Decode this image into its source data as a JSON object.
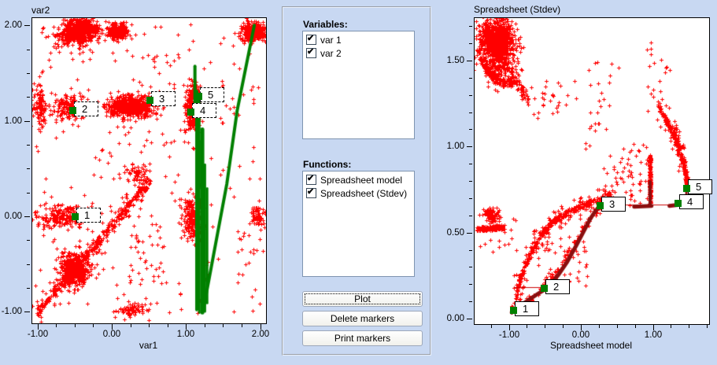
{
  "app": {
    "background": "#c8d8f2"
  },
  "panel": {
    "variables_label": "Variables:",
    "variables": [
      {
        "label": "var 1",
        "checked": true
      },
      {
        "label": "var 2",
        "checked": true
      }
    ],
    "functions_label": "Functions:",
    "functions": [
      {
        "label": "Spreadsheet model",
        "checked": true
      },
      {
        "label": "Spreadsheet (Stdev)",
        "checked": true
      }
    ],
    "buttons": [
      {
        "label": "Plot",
        "focused": true
      },
      {
        "label": "Delete markers",
        "focused": false
      },
      {
        "label": "Print markers",
        "focused": false
      }
    ]
  },
  "chart_data": [
    {
      "type": "scatter",
      "title": "var2",
      "xlabel": "var1",
      "xlim": [
        -1.07,
        2.07
      ],
      "ylim": [
        -1.11,
        2.09
      ],
      "point_color": "#ff0000",
      "line_color": "#008000",
      "marker_color": "#008000",
      "marker_box": "dashed",
      "x_ticks": {
        "majors": [
          {
            "v": -1,
            "label": "-1.00"
          },
          {
            "v": 0,
            "label": "0.00"
          },
          {
            "v": 1,
            "label": "1.00"
          },
          {
            "v": 2,
            "label": "2.00"
          }
        ],
        "minor": {
          "from": -1,
          "to": 2,
          "step": 0.25
        }
      },
      "y_ticks": {
        "majors": [
          {
            "v": 2,
            "label": "2.00"
          },
          {
            "v": 1,
            "label": "1.00"
          },
          {
            "v": 0,
            "label": "0.00"
          },
          {
            "v": -1,
            "label": "-1.00"
          }
        ],
        "minor": {
          "from": -1,
          "to": 2,
          "step": 0.25
        }
      },
      "markers": [
        {
          "n": "1",
          "x": -0.5,
          "y": 0.0
        },
        {
          "n": "2",
          "x": -0.53,
          "y": 1.11
        },
        {
          "n": "3",
          "x": 0.51,
          "y": 1.22
        },
        {
          "n": "4",
          "x": 1.06,
          "y": 1.1
        },
        {
          "n": "5",
          "x": 1.17,
          "y": 1.26
        }
      ],
      "clusters": [
        {
          "t": "g",
          "x": -0.45,
          "y": 1.97,
          "sx": 0.13,
          "sy": 0.05,
          "n": 500
        },
        {
          "t": "g",
          "x": -0.55,
          "y": 1.88,
          "sx": 0.16,
          "sy": 0.05,
          "n": 130
        },
        {
          "t": "g",
          "x": 0.07,
          "y": 1.95,
          "sx": 0.07,
          "sy": 0.045,
          "n": 230
        },
        {
          "t": "g",
          "x": 1.91,
          "y": 1.94,
          "sx": 0.09,
          "sy": 0.05,
          "n": 300
        },
        {
          "t": "u",
          "x0": -1.0,
          "x1": 2.0,
          "y0": 1.55,
          "y1": 2.02,
          "n": 45
        },
        {
          "t": "g",
          "x": -0.98,
          "y": 1.17,
          "sx": 0.05,
          "sy": 0.11,
          "n": 110
        },
        {
          "t": "g",
          "x": -0.6,
          "y": 1.15,
          "sx": 0.11,
          "sy": 0.07,
          "n": 150
        },
        {
          "t": "g",
          "x": 0.25,
          "y": 1.16,
          "sx": 0.16,
          "sy": 0.055,
          "n": 520
        },
        {
          "t": "g",
          "x": 1.08,
          "y": 1.15,
          "sx": 0.05,
          "sy": 0.12,
          "n": 330
        },
        {
          "t": "g",
          "x": 1.14,
          "y": 1.29,
          "sx": 0.035,
          "sy": 0.035,
          "n": 70
        },
        {
          "t": "u",
          "x0": 1.35,
          "x1": 2.0,
          "y0": 1.0,
          "y1": 1.45,
          "n": 16
        },
        {
          "t": "u",
          "x0": 0.25,
          "x1": 0.95,
          "y0": 1.35,
          "y1": 1.75,
          "n": 14
        },
        {
          "t": "g",
          "x": 0.35,
          "y": 0.45,
          "sx": 0.08,
          "sy": 0.07,
          "n": 60
        },
        {
          "t": "u",
          "x0": -0.15,
          "x1": 0.85,
          "y0": 0.35,
          "y1": 0.95,
          "n": 25
        },
        {
          "t": "g",
          "x": -0.65,
          "y": 0.0,
          "sx": 0.17,
          "sy": 0.05,
          "n": 150
        },
        {
          "t": "u",
          "x0": -1.05,
          "x1": -0.3,
          "y0": -0.13,
          "y1": 0.13,
          "n": 60
        },
        {
          "t": "g",
          "x": 1.07,
          "y": 0.0,
          "sx": 0.07,
          "sy": 0.11,
          "n": 210
        },
        {
          "t": "g",
          "x": 1.95,
          "y": 0.0,
          "sx": 0.06,
          "sy": 0.07,
          "n": 70
        },
        {
          "t": "l",
          "x0": -1.02,
          "y0": -1.0,
          "x1": 0.5,
          "y1": 0.38,
          "j": 0.035,
          "n": 300
        },
        {
          "t": "l",
          "x0": -1.0,
          "y0": -1.0,
          "x1": 0.45,
          "y1": 0.35,
          "j": 0.11,
          "n": 110
        },
        {
          "t": "g",
          "x": -0.52,
          "y": -0.55,
          "sx": 0.1,
          "sy": 0.09,
          "n": 430
        },
        {
          "t": "g",
          "x": 0.27,
          "y": -0.97,
          "sx": 0.1,
          "sy": 0.035,
          "n": 70
        },
        {
          "t": "u",
          "x0": -1.05,
          "x1": 2.05,
          "y0": -1.05,
          "y1": 0.6,
          "n": 120
        },
        {
          "t": "u",
          "x0": -1.05,
          "x1": 2.05,
          "y0": 0.6,
          "y1": 1.6,
          "n": 40
        },
        {
          "t": "u",
          "x0": 0.2,
          "x1": 0.75,
          "y0": -0.75,
          "y1": -0.15,
          "n": 30
        },
        {
          "t": "u",
          "x0": 1.6,
          "x1": 2.0,
          "y0": -0.62,
          "y1": -0.2,
          "n": 10
        }
      ],
      "lines": [
        {
          "w": 4,
          "pts": [
            [
              1.11,
              1.58
            ],
            [
              1.11,
              1.06
            ]
          ]
        },
        {
          "w": 4,
          "pts": [
            [
              1.135,
              1.32
            ],
            [
              1.135,
              -0.97
            ]
          ]
        },
        {
          "w": 3,
          "pts": [
            [
              1.17,
              1.27
            ],
            [
              1.17,
              -1.0
            ]
          ]
        },
        {
          "w": 5,
          "pts": [
            [
              1.21,
              0.92
            ],
            [
              1.21,
              -1.0
            ]
          ]
        },
        {
          "w": 3,
          "pts": [
            [
              1.245,
              0.55
            ],
            [
              1.245,
              -0.99
            ]
          ]
        },
        {
          "w": 3,
          "pts": [
            [
              1.275,
              0.3
            ],
            [
              1.275,
              -0.9
            ]
          ]
        },
        {
          "w": 2,
          "pts": [
            [
              1.19,
              0.8
            ],
            [
              1.19,
              0.3
            ]
          ]
        },
        {
          "w": 2,
          "pts": [
            [
              1.23,
              -0.2
            ],
            [
              1.23,
              -0.75
            ]
          ]
        },
        {
          "w": 4,
          "pts": [
            [
              1.23,
              -0.94
            ],
            [
              1.54,
              0.35
            ],
            [
              1.68,
              1.12
            ],
            [
              1.91,
              2.01
            ]
          ]
        }
      ]
    },
    {
      "type": "scatter",
      "title": "Spreadsheet (Stdev)",
      "xlabel": "Spreadsheet model",
      "xlim": [
        -1.49,
        1.77
      ],
      "ylim": [
        -0.03,
        1.75
      ],
      "point_color": "#ff0000",
      "line_color": "#8b0f0f",
      "marker_color": "#008000",
      "marker_box": "solid",
      "x_ticks": {
        "majors": [
          {
            "v": -1,
            "label": "-1.00"
          },
          {
            "v": 0,
            "label": "0.00"
          },
          {
            "v": 1,
            "label": "1.00"
          }
        ],
        "minor": {
          "from": -1.25,
          "to": 1.75,
          "step": 0.25
        }
      },
      "y_ticks": {
        "majors": [
          {
            "v": 1.5,
            "label": "1.50"
          },
          {
            "v": 1,
            "label": "1.00"
          },
          {
            "v": 0.5,
            "label": "0.50"
          },
          {
            "v": 0,
            "label": "0.00"
          }
        ],
        "minor": {
          "from": 0,
          "to": 1.7,
          "step": 0.1
        }
      },
      "markers": [
        {
          "n": "1",
          "x": -0.94,
          "y": 0.05
        },
        {
          "n": "2",
          "x": -0.51,
          "y": 0.18
        },
        {
          "n": "3",
          "x": 0.26,
          "y": 0.66
        },
        {
          "n": "4",
          "x": 1.34,
          "y": 0.67
        },
        {
          "n": "5",
          "x": 1.46,
          "y": 0.76
        }
      ],
      "clusters": [
        {
          "t": "g",
          "x": -1.18,
          "y": 1.63,
          "sx": 0.11,
          "sy": 0.055,
          "n": 850
        },
        {
          "t": "g",
          "x": -1.12,
          "y": 1.48,
          "sx": 0.12,
          "sy": 0.05,
          "n": 200
        },
        {
          "t": "c",
          "pts": [
            [
              -1.44,
              1.56
            ],
            [
              -1.33,
              1.46
            ],
            [
              -1.18,
              1.39
            ],
            [
              -1.03,
              1.37
            ],
            [
              -0.92,
              1.39
            ]
          ],
          "j": 0.025,
          "n": 160
        },
        {
          "t": "l",
          "x0": -0.92,
          "y0": 1.4,
          "x1": -0.75,
          "y1": 1.27,
          "j": 0.03,
          "n": 45
        },
        {
          "t": "u",
          "x0": -0.72,
          "x1": -0.25,
          "y0": 1.15,
          "y1": 1.36,
          "n": 16
        },
        {
          "t": "u",
          "x0": 0.0,
          "x1": 0.55,
          "y0": 1.2,
          "y1": 1.5,
          "n": 16
        },
        {
          "t": "u",
          "x0": 0.02,
          "x1": 0.35,
          "y0": 0.98,
          "y1": 1.15,
          "n": 10
        },
        {
          "t": "l",
          "x0": 0.95,
          "y0": 0.67,
          "x1": 0.95,
          "y1": 0.95,
          "j": 0.012,
          "n": 170
        },
        {
          "t": "u",
          "x0": 0.55,
          "x1": 0.93,
          "y0": 0.66,
          "y1": 1.02,
          "n": 40
        },
        {
          "t": "c",
          "pts": [
            [
              1.06,
              1.24
            ],
            [
              1.28,
              1.08
            ],
            [
              1.41,
              0.92
            ],
            [
              1.47,
              0.79
            ]
          ],
          "j": 0.018,
          "n": 240
        },
        {
          "t": "c",
          "pts": [
            [
              1.06,
              1.24
            ],
            [
              1.28,
              1.08
            ],
            [
              1.41,
              0.92
            ]
          ],
          "j": 0.06,
          "n": 60
        },
        {
          "t": "u",
          "x0": 0.9,
          "x1": 1.25,
          "y0": 1.2,
          "y1": 1.62,
          "n": 20
        },
        {
          "t": "l",
          "x0": -1.46,
          "y0": 0.525,
          "x1": -1.08,
          "y1": 0.535,
          "j": 0.013,
          "n": 150
        },
        {
          "t": "g",
          "x": -1.25,
          "y": 0.6,
          "sx": 0.07,
          "sy": 0.025,
          "n": 70
        },
        {
          "t": "u",
          "x0": -1.42,
          "x1": -0.85,
          "y0": 0.38,
          "y1": 0.66,
          "n": 22
        },
        {
          "t": "c",
          "pts": [
            [
              -0.93,
              0.08
            ],
            [
              -0.88,
              0.2
            ],
            [
              -0.8,
              0.3
            ],
            [
              -0.7,
              0.39
            ],
            [
              -0.6,
              0.47
            ],
            [
              -0.48,
              0.53
            ],
            [
              -0.35,
              0.58
            ],
            [
              -0.2,
              0.62
            ],
            [
              -0.02,
              0.655
            ],
            [
              0.18,
              0.69
            ],
            [
              0.45,
              0.74
            ]
          ],
          "j": 0.016,
          "n": 300
        },
        {
          "t": "c",
          "pts": [
            [
              -0.93,
              0.08
            ],
            [
              -0.88,
              0.2
            ],
            [
              -0.8,
              0.3
            ],
            [
              -0.7,
              0.39
            ],
            [
              -0.6,
              0.47
            ],
            [
              -0.48,
              0.53
            ],
            [
              -0.35,
              0.58
            ],
            [
              -0.2,
              0.62
            ],
            [
              -0.02,
              0.655
            ],
            [
              0.18,
              0.69
            ],
            [
              0.45,
              0.74
            ]
          ],
          "j": 0.06,
          "n": 130
        },
        {
          "t": "u",
          "x0": -0.6,
          "x1": 0.1,
          "y0": 0.18,
          "y1": 0.52,
          "n": 60
        },
        {
          "t": "c",
          "pts": [
            [
              -0.97,
              0.05
            ],
            [
              -0.75,
              0.11
            ],
            [
              -0.55,
              0.17
            ],
            [
              -0.42,
              0.23
            ],
            [
              -0.3,
              0.3
            ],
            [
              -0.17,
              0.4
            ],
            [
              -0.05,
              0.48
            ],
            [
              0.08,
              0.56
            ],
            [
              0.2,
              0.62
            ],
            [
              0.27,
              0.66
            ]
          ],
          "j": 0.02,
          "n": 130
        },
        {
          "t": "u",
          "x0": 0.3,
          "x1": 0.6,
          "y0": 0.72,
          "y1": 0.95,
          "n": 14
        },
        {
          "t": "u",
          "x0": -0.55,
          "x1": -0.05,
          "y0": 1.2,
          "y1": 1.42,
          "n": 12
        }
      ],
      "lines": [
        {
          "color": "#cc0000",
          "w": 1,
          "pts": [
            [
              -0.94,
              0.185
            ],
            [
              -0.51,
              0.185
            ]
          ]
        },
        {
          "color": "#cc0000",
          "w": 1,
          "pts": [
            [
              0.27,
              0.665
            ],
            [
              1.33,
              0.665
            ]
          ]
        },
        {
          "color": "#8b0f0f",
          "w": 5,
          "pts": [
            [
              -0.97,
              0.04
            ],
            [
              -0.8,
              0.095
            ],
            [
              -0.62,
              0.145
            ],
            [
              -0.47,
              0.185
            ],
            [
              -0.33,
              0.255
            ],
            [
              -0.2,
              0.335
            ],
            [
              -0.08,
              0.425
            ],
            [
              0.02,
              0.505
            ],
            [
              0.12,
              0.585
            ],
            [
              0.2,
              0.635
            ],
            [
              0.27,
              0.66
            ]
          ]
        },
        {
          "color": "#8b0f0f",
          "w": 5,
          "pts": [
            [
              0.73,
              0.655
            ],
            [
              0.97,
              0.66
            ]
          ]
        },
        {
          "color": "#8b0f0f",
          "w": 4,
          "pts": [
            [
              0.95,
              0.66
            ],
            [
              0.95,
              0.8
            ]
          ]
        },
        {
          "color": "#8b0f0f",
          "w": 5,
          "pts": [
            [
              1.22,
              0.66
            ],
            [
              1.33,
              0.665
            ]
          ]
        },
        {
          "color": "#8b0f0f",
          "w": 3,
          "pts": [
            [
              1.455,
              0.68
            ],
            [
              1.455,
              0.77
            ]
          ]
        }
      ]
    }
  ]
}
